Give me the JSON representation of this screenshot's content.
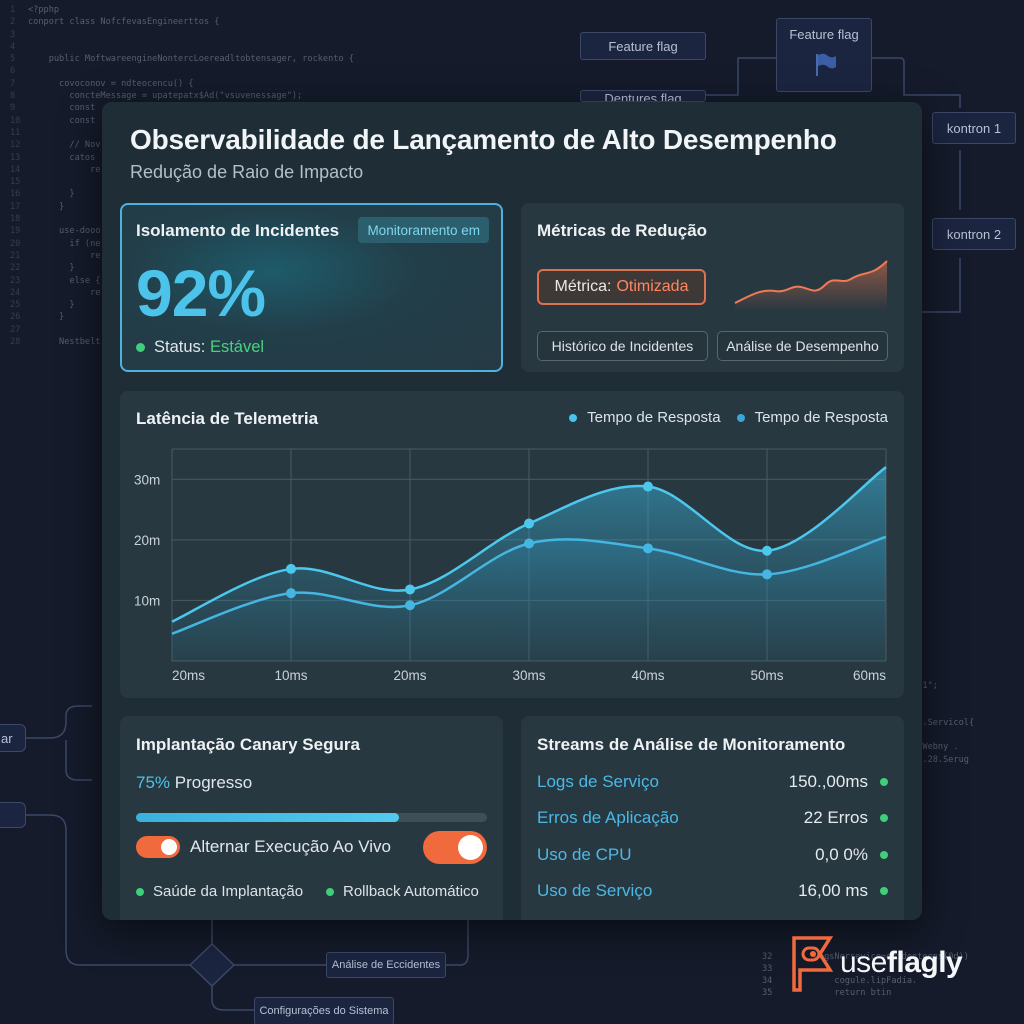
{
  "background": {
    "code_left": [
      {
        "n": "1",
        "t": "<?pphp"
      },
      {
        "n": "2",
        "t": "conport class NofcfevasEngineerttos {"
      },
      {
        "n": "3",
        "t": ""
      },
      {
        "n": "4",
        "t": ""
      },
      {
        "n": "5",
        "t": "    public MoftwareengineNontercLoereadltobtensager, rockento {"
      },
      {
        "n": "6",
        "t": ""
      },
      {
        "n": "7",
        "t": "      covoconov = ndteocencu() {"
      },
      {
        "n": "8",
        "t": "        concteMessage = upatepatx$Ad(\"vsuvenessage\");"
      },
      {
        "n": "9",
        "t": "        const"
      },
      {
        "n": "10",
        "t": "        const"
      },
      {
        "n": "11",
        "t": ""
      },
      {
        "n": "12",
        "t": "        // Nov"
      },
      {
        "n": "13",
        "t": "        catos"
      },
      {
        "n": "14",
        "t": "            re"
      },
      {
        "n": "15",
        "t": ""
      },
      {
        "n": "16",
        "t": "        }"
      },
      {
        "n": "17",
        "t": "      }"
      },
      {
        "n": "18",
        "t": ""
      },
      {
        "n": "19",
        "t": "      use-dooo"
      },
      {
        "n": "20",
        "t": "        if (ne"
      },
      {
        "n": "21",
        "t": "            re"
      },
      {
        "n": "22",
        "t": "        }"
      },
      {
        "n": "23",
        "t": "        else {"
      },
      {
        "n": "24",
        "t": "            re"
      },
      {
        "n": "25",
        "t": "        }"
      },
      {
        "n": "26",
        "t": "      }"
      },
      {
        "n": "27",
        "t": ""
      },
      {
        "n": "28",
        "t": "      Nestbelt"
      }
    ],
    "code_right": [
      "                       e domrln1\";",
      "",
      "                       sony",
      "                      t- natson.Servicol{",
      "",
      "                      ttotoclt:Webny .",
      "                      niasIrada.28.Serug",
      "",
      "",
      "",
      "",
      "",
      "                  s:",
      "",
      "",
      "",
      "",
      "",
      "",
      "",
      "",
      "",
      "32        LegsNersevico=ecidenteens(0d))",
      "33",
      "34            cogule.lipFadia.",
      "35            return btin"
    ],
    "nodes": {
      "feature_flag_1": "Feature flag",
      "feature_flag_2": "Feature flag",
      "feature_flag_3": "Dentures flag",
      "kontron_1": "kontron 1",
      "kontron_2": "kontron 2",
      "left_node": "ar",
      "analise": "Análise de Eccidentes",
      "config": "Configurações do Sistema"
    }
  },
  "header": {
    "title": "Observabilidade de Lançamento de Alto Desempenho",
    "subtitle": "Redução de Raio de Impacto"
  },
  "isolation_card": {
    "title": "Isolamento de Incidentes",
    "badge": "Monitoramento em",
    "value": "92%",
    "status_label": "Status:",
    "status_value": "Estável"
  },
  "reduction_card": {
    "title": "Métricas de Redução",
    "metric_label": "Métrica:",
    "metric_value": "Otimizada",
    "button_history": "Histórico de Incidentes",
    "button_analysis": "Análise de Desempenho"
  },
  "colors": {
    "accent": "#4cc3ea",
    "orange": "#f06a3e",
    "green": "#3ecf7a"
  },
  "chart_data": {
    "type": "area",
    "title": "Latência de Telemetria",
    "x": [
      "20ms",
      "10ms",
      "20ms",
      "30ms",
      "40ms",
      "50ms",
      "60ms"
    ],
    "yticks": [
      "10m",
      "20m",
      "30m"
    ],
    "ylim": [
      0,
      35
    ],
    "series": [
      {
        "name": "Tempo de Resposta",
        "values": [
          6.5,
          15.2,
          11.8,
          22.7,
          28.8,
          18.2,
          32
        ]
      },
      {
        "name": "Tempo de Resposta",
        "values": [
          4.5,
          11.2,
          9.2,
          19.4,
          18.6,
          14.3,
          20.5
        ]
      }
    ],
    "grid": true,
    "legend": "top-right"
  },
  "canary": {
    "title": "Implantação Canary Segura",
    "progress_pct": "75%",
    "progress_label": "Progresso",
    "progress_value": 0.75,
    "toggle_label": "Alternar Execução Ao Vivo",
    "check_1": "Saúde da Implantação",
    "check_2": "Rollback Automático"
  },
  "streams": {
    "title": "Streams de Análise de Monitoramento",
    "rows": [
      {
        "name": "Logs de Serviço",
        "value": "150.,00ms"
      },
      {
        "name": "Erros de Aplicação",
        "value": "22 Erros"
      },
      {
        "name": "Uso de CPU",
        "value": "0,0 0%"
      },
      {
        "name": "Uso de Serviço",
        "value": "16,00 ms"
      }
    ]
  },
  "logo": {
    "prefix": "use",
    "bold": "flagly"
  }
}
